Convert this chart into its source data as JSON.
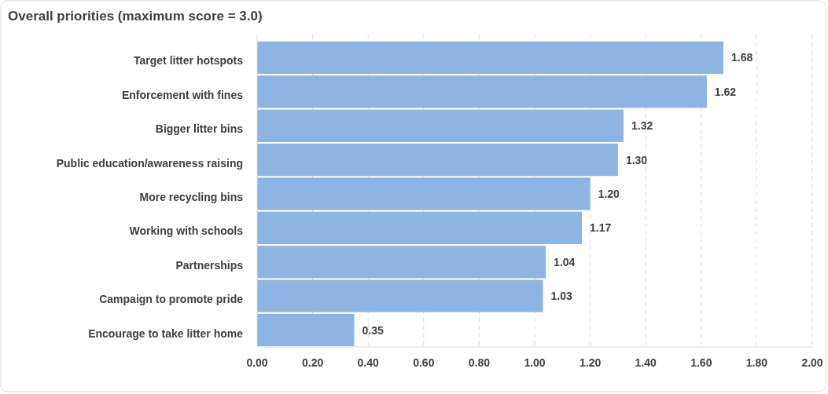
{
  "chart_data": {
    "type": "bar",
    "orientation": "horizontal",
    "title": "Overall priorities (maximum score = 3.0)",
    "categories": [
      "Target litter hotspots",
      "Enforcement with fines",
      "Bigger litter bins",
      "Public education/awareness raising",
      "More recycling bins",
      "Working with schools",
      "Partnerships",
      "Campaign to promote pride",
      "Encourage to take litter home"
    ],
    "values": [
      1.68,
      1.62,
      1.32,
      1.3,
      1.2,
      1.17,
      1.04,
      1.03,
      0.35
    ],
    "color": "#8db4e2",
    "xlim": [
      0,
      2
    ],
    "xticks": [
      {
        "value": 0,
        "label": "0.00"
      },
      {
        "value": 0.2,
        "label": "0.20"
      },
      {
        "value": 0.4,
        "label": "0.40"
      },
      {
        "value": 0.6,
        "label": "0.60"
      },
      {
        "value": 0.8,
        "label": "0.80"
      },
      {
        "value": 1,
        "label": "1.00"
      },
      {
        "value": 1.2,
        "label": "1.20"
      },
      {
        "value": 1.4,
        "label": "1.40"
      },
      {
        "value": 1.6,
        "label": "1.60"
      },
      {
        "value": 1.8,
        "label": "1.80"
      },
      {
        "value": 2,
        "label": "2.00"
      }
    ],
    "value_labels": [
      "1.68",
      "1.62",
      "1.32",
      "1.30",
      "1.20",
      "1.17",
      "1.04",
      "1.03",
      "0.35"
    ],
    "grid": "x"
  }
}
